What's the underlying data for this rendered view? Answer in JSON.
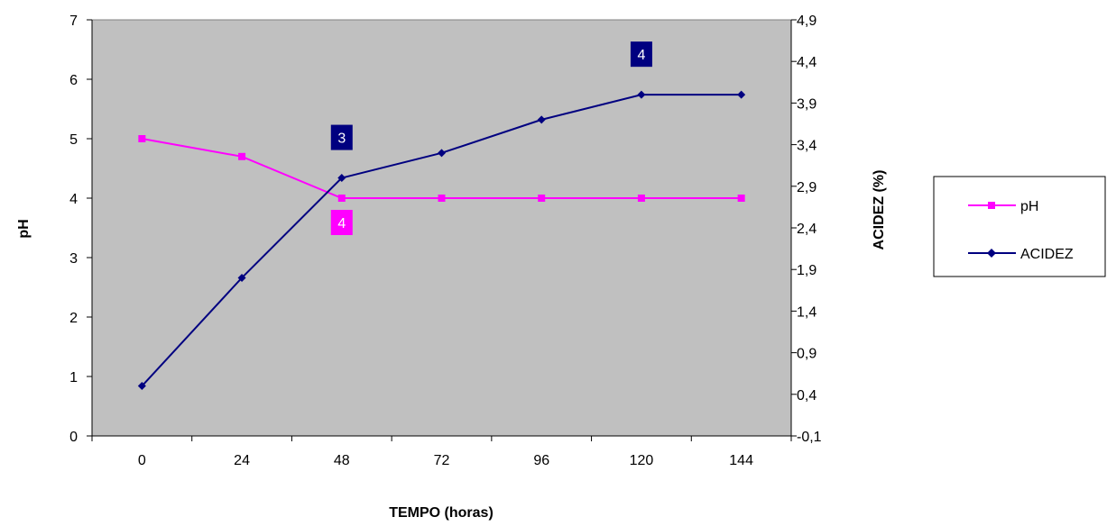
{
  "chart_data": {
    "type": "line",
    "title": "",
    "xlabel": "TEMPO (horas)",
    "ylabel_left": "pH",
    "ylabel_right": "ACIDEZ (%)",
    "categories": [
      "0",
      "24",
      "48",
      "72",
      "96",
      "120",
      "144"
    ],
    "y_left": {
      "min": 0,
      "max": 7,
      "ticks": [
        "0",
        "1",
        "2",
        "3",
        "4",
        "5",
        "6",
        "7"
      ]
    },
    "y_right": {
      "min": -0.1,
      "max": 4.9,
      "ticks": [
        "-0,1",
        "0,4",
        "0,9",
        "1,4",
        "1,9",
        "2,4",
        "2,9",
        "3,4",
        "3,9",
        "4,4",
        "4,9"
      ]
    },
    "grid": false,
    "plot_background": "#c0c0c0",
    "legend_position": "right",
    "series": [
      {
        "name": "pH",
        "axis": "left",
        "color": "#ff00ff",
        "marker": "square",
        "values": [
          5.0,
          4.7,
          4.0,
          4.0,
          4.0,
          4.0,
          4.0
        ]
      },
      {
        "name": "ACIDEZ",
        "axis": "right",
        "color": "#000080",
        "marker": "diamond",
        "values": [
          0.5,
          1.8,
          3.0,
          3.3,
          3.7,
          4.0,
          4.0
        ]
      }
    ],
    "annotations": [
      {
        "text": "3",
        "series": "ACIDEZ",
        "category": "48",
        "color": "#000080"
      },
      {
        "text": "4",
        "series": "ACIDEZ",
        "category": "120",
        "color": "#000080"
      },
      {
        "text": "4",
        "series": "pH",
        "category": "48",
        "color": "#ff00ff"
      }
    ]
  }
}
